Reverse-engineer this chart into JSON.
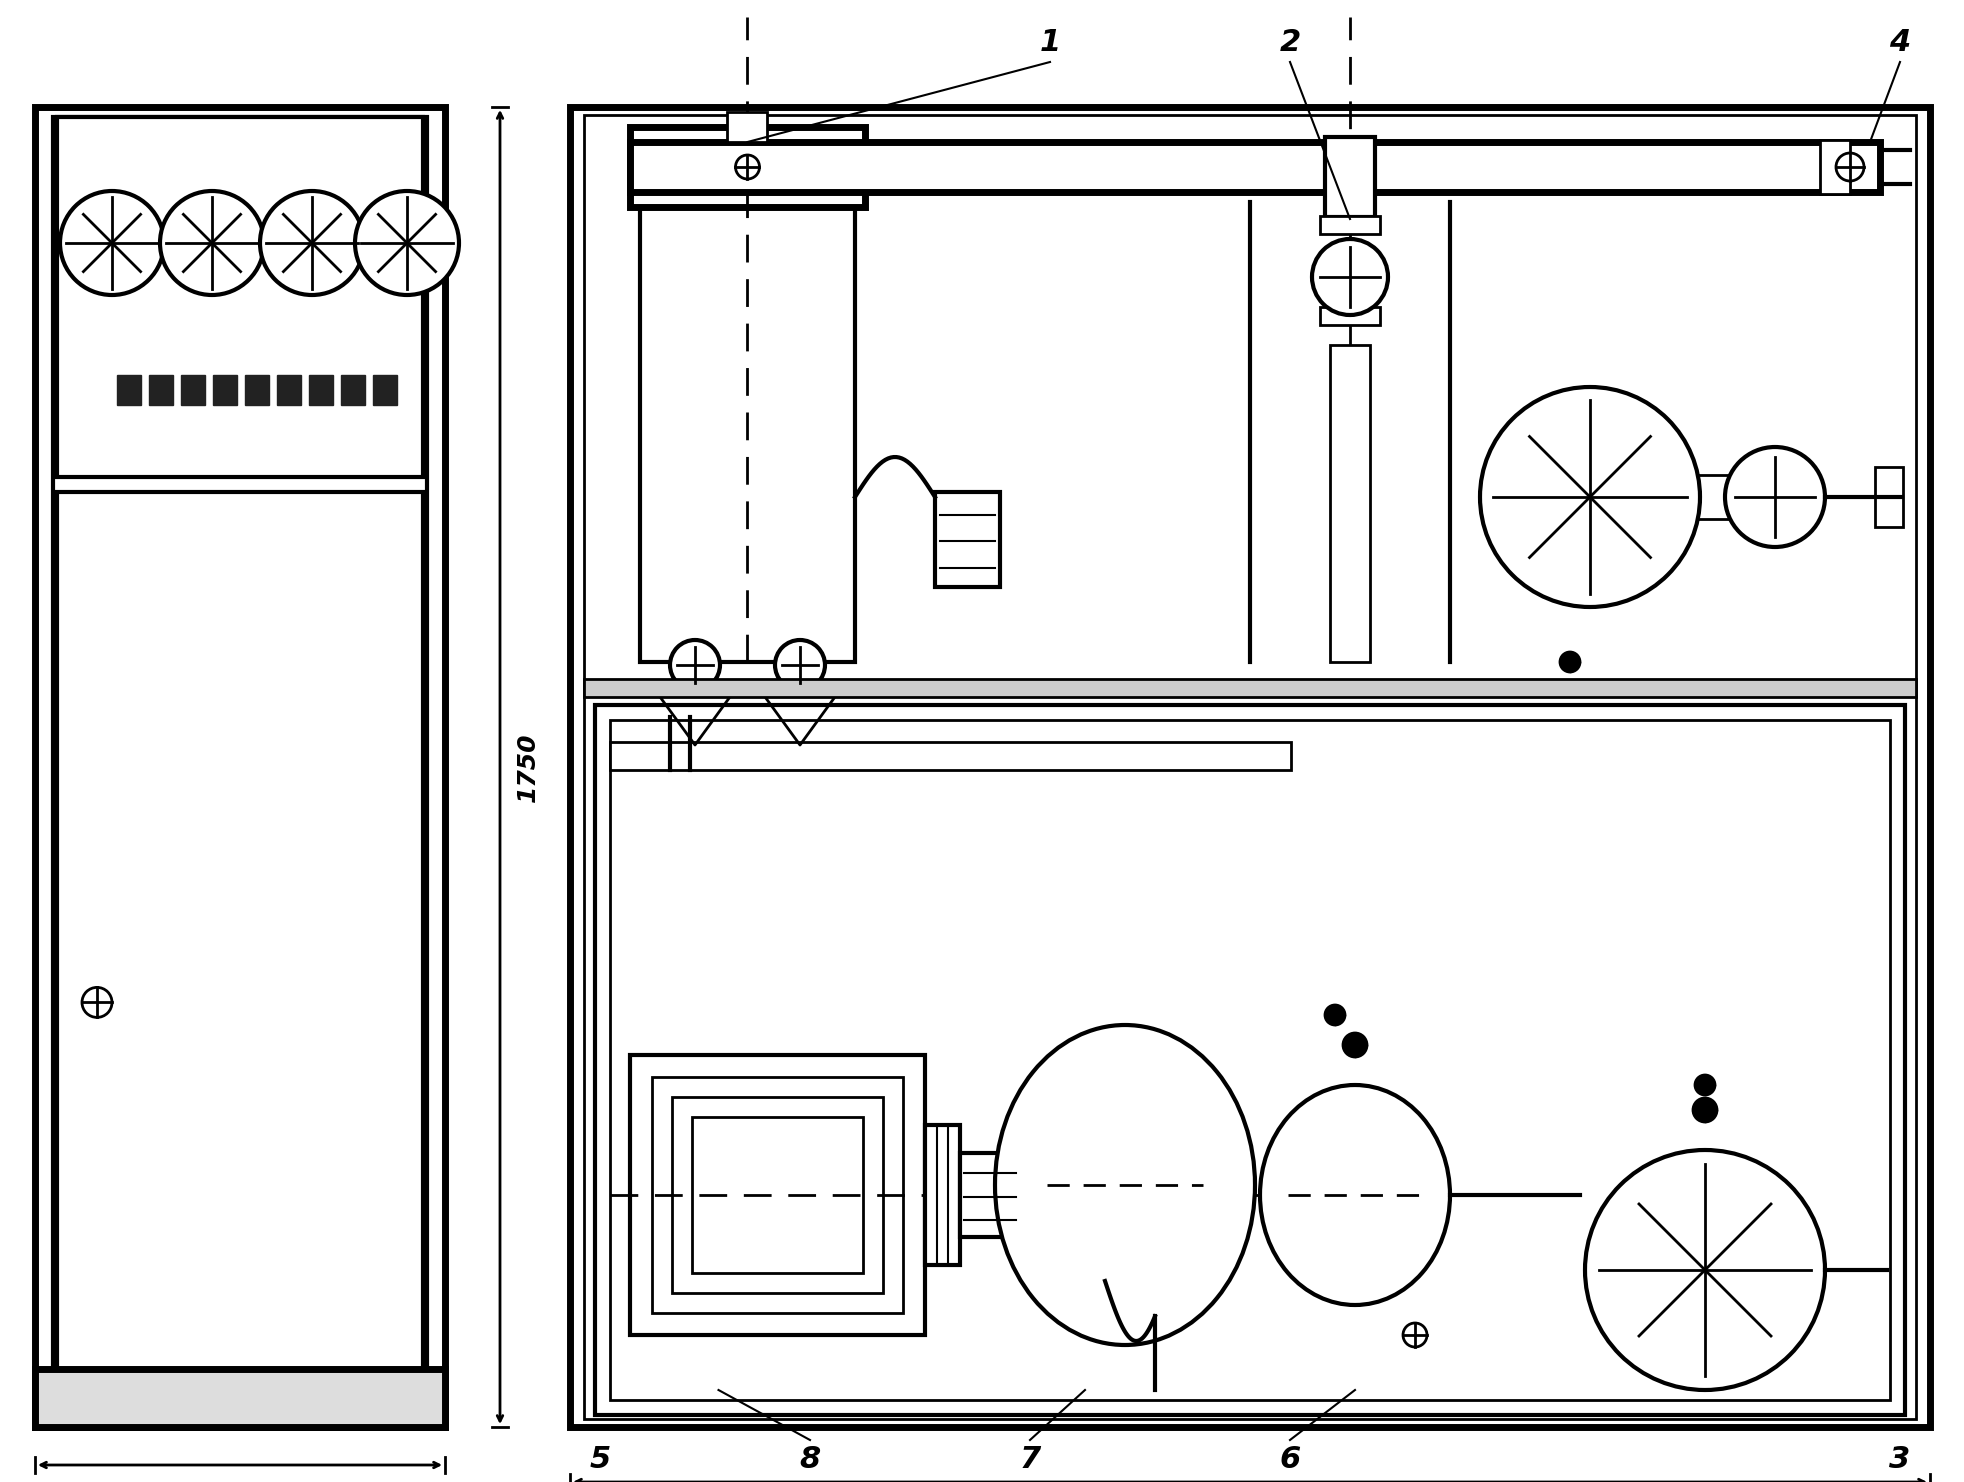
{
  "bg_color": "#ffffff",
  "line_color": "#000000",
  "fig_width": 19.64,
  "fig_height": 14.82,
  "dpi": 100
}
